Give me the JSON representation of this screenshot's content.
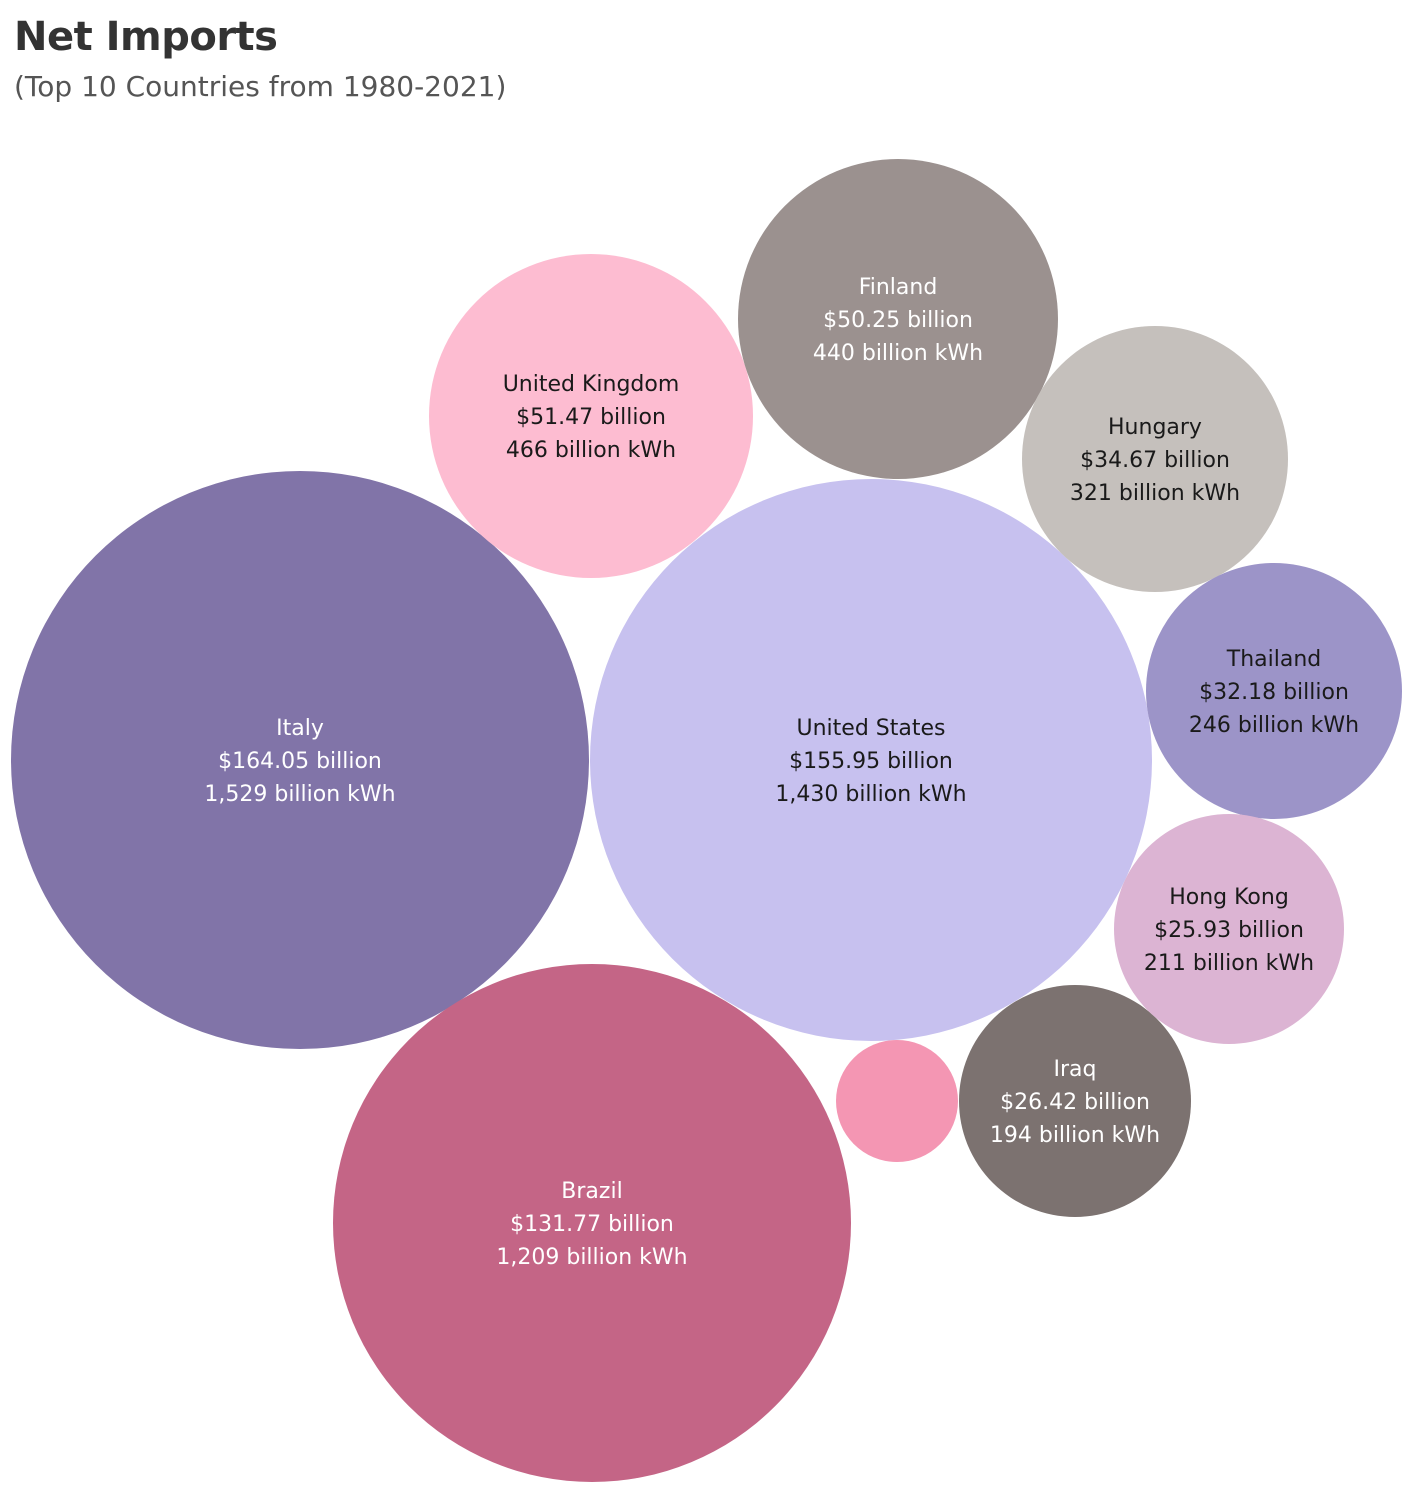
{
  "title": "Net Imports",
  "subtitle": "(Top 10 Countries from 1980-2021)",
  "chart_data": {
    "type": "packed-bubble",
    "title": "Net Imports",
    "subtitle": "(Top 10 Countries from 1980-2021)",
    "size_measure": "billion kWh",
    "bubbles": [
      {
        "country": "Italy",
        "value_label": "$164.05 billion",
        "kwh_label": "1,529 billion kWh",
        "value": 164.05,
        "kwh": 1529,
        "color": "#8174a8",
        "text_color": "#ffffff"
      },
      {
        "country": "United States",
        "value_label": "$155.95 billion",
        "kwh_label": "1,430 billion kWh",
        "value": 155.95,
        "kwh": 1430,
        "color": "#c7c1ef",
        "text_color": "#1a1a1a"
      },
      {
        "country": "Brazil",
        "value_label": "$131.77 billion",
        "kwh_label": "1,209 billion kWh",
        "value": 131.77,
        "kwh": 1209,
        "color": "#c46586",
        "text_color": "#ffffff"
      },
      {
        "country": "United Kingdom",
        "value_label": "$51.47 billion",
        "kwh_label": "466 billion kWh",
        "value": 51.47,
        "kwh": 466,
        "color": "#fdbcd1",
        "text_color": "#1a1a1a"
      },
      {
        "country": "Finland",
        "value_label": "$50.25 billion",
        "kwh_label": "440 billion kWh",
        "value": 50.25,
        "kwh": 440,
        "color": "#9b918f",
        "text_color": "#ffffff"
      },
      {
        "country": "Hungary",
        "value_label": "$34.67 billion",
        "kwh_label": "321 billion kWh",
        "value": 34.67,
        "kwh": 321,
        "color": "#c5c0bc",
        "text_color": "#1a1a1a"
      },
      {
        "country": "Thailand",
        "value_label": "$32.18 billion",
        "kwh_label": "246 billion kWh",
        "value": 32.18,
        "kwh": 246,
        "color": "#9c94c8",
        "text_color": "#1a1a1a"
      },
      {
        "country": "Iraq",
        "value_label": "$26.42 billion",
        "kwh_label": "194 billion kWh",
        "value": 26.42,
        "kwh": 194,
        "color": "#7c7270",
        "text_color": "#ffffff"
      },
      {
        "country": "Hong Kong",
        "value_label": "$25.93 billion",
        "kwh_label": "211 billion kWh",
        "value": 25.93,
        "kwh": 211,
        "color": "#dcb4d3",
        "text_color": "#1a1a1a"
      },
      {
        "country": "",
        "value_label": "",
        "kwh_label": "",
        "value": null,
        "kwh": null,
        "color": "#f496b3",
        "text_color": "#1a1a1a"
      }
    ]
  }
}
